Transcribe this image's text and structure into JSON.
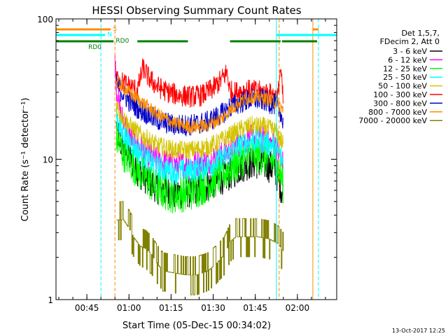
{
  "chart_data": {
    "type": "line",
    "title": "HESSI Observing Summary Count Rates",
    "xlabel": "Start Time (05-Dec-15 00:34:02)",
    "ylabel": "Count Rate (s⁻¹ detector⁻¹)",
    "yscale": "log",
    "ylim": [
      1,
      100
    ],
    "xlim_minutes": [
      0,
      100
    ],
    "x_ticks": [
      {
        "t": 11,
        "label": "00:45"
      },
      {
        "t": 26,
        "label": "01:00"
      },
      {
        "t": 41,
        "label": "01:15"
      },
      {
        "t": 56,
        "label": "01:30"
      },
      {
        "t": 71,
        "label": "01:45"
      },
      {
        "t": 86,
        "label": "02:00"
      }
    ],
    "y_ticks": [
      {
        "v": 1,
        "label": "1"
      },
      {
        "v": 10,
        "label": "10"
      },
      {
        "v": 100,
        "label": "100"
      }
    ],
    "legend_header": [
      "Det 1,5,7,",
      "FDecim 2, Att 0"
    ],
    "legend_position": "right",
    "timestamp": "13-Oct-2017 12:25",
    "flags": [
      {
        "name": "S",
        "color": "#ff8c00",
        "segments": [
          [
            0,
            19.5
          ],
          [
            91.5,
            93.5
          ]
        ]
      },
      {
        "name": "N",
        "color": "#00ffff",
        "segments": [
          [
            0,
            17.5
          ],
          [
            78.5,
            100
          ]
        ]
      },
      {
        "name": "RD0",
        "color": "#008000",
        "segments": [
          [
            0,
            20.5
          ],
          [
            29,
            47
          ],
          [
            62,
            80
          ],
          [
            80.5,
            93
          ]
        ]
      }
    ],
    "vlines": [
      {
        "t": 16,
        "color": "#00ffff",
        "style": "dashed"
      },
      {
        "t": 21,
        "color": "#ff8c00",
        "style": "dashed"
      },
      {
        "t": 78.5,
        "color": "#00ffff",
        "style": "solid"
      },
      {
        "t": 79.5,
        "color": "#ff8c00",
        "style": "dashed"
      },
      {
        "t": 91.5,
        "color": "#ff8c00",
        "style": "solid"
      },
      {
        "t": 93.5,
        "color": "#00ffff",
        "style": "dashed"
      }
    ],
    "series": [
      {
        "name": "3 - 6 keV",
        "color": "#000000",
        "noise": 0.12,
        "points": [
          [
            21.5,
            17
          ],
          [
            23,
            13
          ],
          [
            26,
            10.2
          ],
          [
            30,
            8
          ],
          [
            36,
            6.3
          ],
          [
            42,
            5.7
          ],
          [
            48,
            5.9
          ],
          [
            54,
            6.5
          ],
          [
            59,
            7.3
          ],
          [
            62,
            7.8
          ],
          [
            66,
            8.9
          ],
          [
            70,
            9.5
          ],
          [
            74,
            9.3
          ],
          [
            78,
            8.5
          ],
          [
            80,
            6.5
          ],
          [
            81,
            5.5
          ]
        ]
      },
      {
        "name": "6 - 12 keV",
        "color": "#ff00ff",
        "noise": 0.1,
        "points": [
          [
            21,
            55
          ],
          [
            21.5,
            33
          ],
          [
            23,
            21
          ],
          [
            26,
            15
          ],
          [
            30,
            12
          ],
          [
            36,
            9.8
          ],
          [
            42,
            9.1
          ],
          [
            48,
            9.2
          ],
          [
            54,
            9.7
          ],
          [
            59,
            10.7
          ],
          [
            62,
            11.7
          ],
          [
            66,
            13.2
          ],
          [
            70,
            14.2
          ],
          [
            74,
            13.7
          ],
          [
            78,
            12.5
          ],
          [
            80,
            10.5
          ],
          [
            81,
            9
          ]
        ]
      },
      {
        "name": "12 - 25 keV",
        "color": "#00ff00",
        "noise": 0.14,
        "points": [
          [
            21.5,
            14
          ],
          [
            23,
            12
          ],
          [
            26,
            10
          ],
          [
            30,
            8
          ],
          [
            36,
            6.2
          ],
          [
            42,
            5.6
          ],
          [
            48,
            5.9
          ],
          [
            54,
            6.7
          ],
          [
            59,
            7.8
          ],
          [
            62,
            8.6
          ],
          [
            66,
            10
          ],
          [
            70,
            10.8
          ],
          [
            74,
            10.5
          ],
          [
            78,
            9.6
          ],
          [
            80,
            8
          ],
          [
            81,
            6.5
          ]
        ]
      },
      {
        "name": "25 - 50 keV",
        "color": "#00ffff",
        "noise": 0.09,
        "points": [
          [
            21.5,
            21
          ],
          [
            23,
            16
          ],
          [
            26,
            13.5
          ],
          [
            30,
            11
          ],
          [
            36,
            8.8
          ],
          [
            42,
            8.1
          ],
          [
            48,
            8.3
          ],
          [
            54,
            8.9
          ],
          [
            59,
            10
          ],
          [
            62,
            11
          ],
          [
            66,
            12.7
          ],
          [
            70,
            13.7
          ],
          [
            74,
            13.3
          ],
          [
            78,
            12.3
          ],
          [
            80,
            10.5
          ],
          [
            81,
            9.5
          ]
        ]
      },
      {
        "name": "50 - 100 keV",
        "color": "#d4c400",
        "noise": 0.07,
        "points": [
          [
            21.5,
            25
          ],
          [
            23,
            21
          ],
          [
            26,
            17.5
          ],
          [
            30,
            15
          ],
          [
            36,
            12.5
          ],
          [
            42,
            11.6
          ],
          [
            48,
            11.6
          ],
          [
            54,
            12.2
          ],
          [
            59,
            13.6
          ],
          [
            62,
            14.8
          ],
          [
            66,
            16.4
          ],
          [
            70,
            17.4
          ],
          [
            74,
            17
          ],
          [
            78,
            16
          ],
          [
            80,
            14
          ],
          [
            81,
            12.5
          ]
        ]
      },
      {
        "name": "100 - 300 keV",
        "color": "#ff0000",
        "noise": 0.08,
        "points": [
          [
            21.5,
            38
          ],
          [
            23,
            36
          ],
          [
            25,
            34
          ],
          [
            29,
            31
          ],
          [
            31,
            45
          ],
          [
            33,
            38
          ],
          [
            36,
            33
          ],
          [
            40,
            30
          ],
          [
            44,
            28.5
          ],
          [
            48,
            28
          ],
          [
            52,
            28.5
          ],
          [
            56,
            32
          ],
          [
            59,
            37
          ],
          [
            61,
            42
          ],
          [
            61.5,
            35
          ],
          [
            62,
            30.5
          ],
          [
            64,
            30
          ],
          [
            68,
            31
          ],
          [
            72,
            30.5
          ],
          [
            76,
            29.5
          ],
          [
            79,
            27.5
          ],
          [
            80,
            45
          ],
          [
            80.5,
            33
          ],
          [
            81,
            25
          ]
        ]
      },
      {
        "name": "300 - 800 keV",
        "color": "#0000c8",
        "noise": 0.08,
        "points": [
          [
            21.5,
            36
          ],
          [
            23,
            31
          ],
          [
            26,
            26
          ],
          [
            30,
            22.5
          ],
          [
            36,
            19
          ],
          [
            42,
            17.5
          ],
          [
            48,
            17.5
          ],
          [
            54,
            18.5
          ],
          [
            59,
            21
          ],
          [
            62,
            23.5
          ],
          [
            66,
            25.5
          ],
          [
            70,
            26.8
          ],
          [
            74,
            26.3
          ],
          [
            78,
            24.5
          ],
          [
            80,
            22
          ],
          [
            81,
            17
          ]
        ]
      },
      {
        "name": "800 - 7000 keV",
        "color": "#ff8c00",
        "noise": 0.05,
        "points": [
          [
            21.5,
            36
          ],
          [
            23,
            34
          ],
          [
            26,
            30
          ],
          [
            30,
            26
          ],
          [
            36,
            21
          ],
          [
            42,
            18
          ],
          [
            48,
            17
          ],
          [
            54,
            17.4
          ],
          [
            59,
            19.5
          ],
          [
            62,
            22.5
          ],
          [
            66,
            26
          ],
          [
            70,
            27.8
          ],
          [
            74,
            27.3
          ],
          [
            78,
            25.5
          ],
          [
            80,
            24
          ],
          [
            81,
            22
          ]
        ]
      },
      {
        "name": "7000 - 20000 keV",
        "color": "#808000",
        "noise": 0.0,
        "step": true,
        "points": [
          [
            21.5,
            3.7
          ],
          [
            24,
            3.7
          ],
          [
            26,
            3.2
          ],
          [
            28,
            2.7
          ],
          [
            30,
            2.4
          ],
          [
            32,
            2.3
          ],
          [
            34,
            2.1
          ],
          [
            36,
            1.8
          ],
          [
            38,
            1.6
          ],
          [
            42,
            1.55
          ],
          [
            46,
            1.5
          ],
          [
            50,
            1.5
          ],
          [
            54,
            1.6
          ],
          [
            57,
            1.8
          ],
          [
            60,
            2.1
          ],
          [
            62,
            2.6
          ],
          [
            64,
            2.8
          ],
          [
            68,
            2.8
          ],
          [
            72,
            2.8
          ],
          [
            76,
            2.7
          ],
          [
            79,
            2.5
          ],
          [
            81,
            2.2
          ]
        ]
      }
    ]
  }
}
